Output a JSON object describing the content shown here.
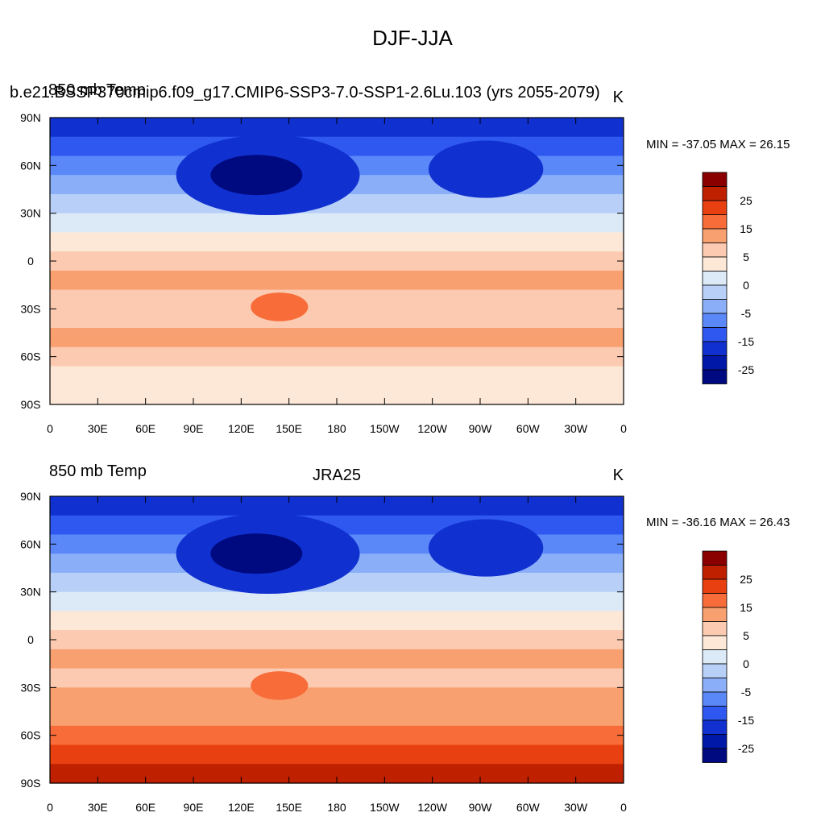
{
  "title": "DJF-JJA",
  "panels": [
    {
      "left_label": "850 mb Temp",
      "overlap_label": "b.e21.BSSP370cmip6.f09_g17.CMIP6-SSP3-7.0-SSP1-2.6Lu.103 (yrs 2055-2079)",
      "center_label": "",
      "units": "K",
      "stats": "MIN = -37.05 MAX =  26.15",
      "min": -37.05,
      "max": 26.15,
      "masked_high_terrain": true
    },
    {
      "left_label": "850 mb Temp",
      "overlap_label": "",
      "center_label": "JRA25",
      "units": "K",
      "stats": "MIN = -36.16 MAX =  26.43",
      "min": -36.16,
      "max": 26.43,
      "masked_high_terrain": false
    }
  ],
  "lat_labels": [
    "90N",
    "60N",
    "30N",
    "0",
    "30S",
    "60S",
    "90S"
  ],
  "lon_labels": [
    "0",
    "30E",
    "60E",
    "90E",
    "120E",
    "150E",
    "180",
    "150W",
    "120W",
    "90W",
    "60W",
    "30W",
    "0"
  ],
  "colorbar": {
    "labels": [
      "25",
      "15",
      "5",
      "0",
      "-5",
      "-15",
      "-25"
    ],
    "colors": [
      "#8a0000",
      "#bf2000",
      "#e84010",
      "#f86c3a",
      "#f8a070",
      "#fccab0",
      "#fde8d8",
      "#dceaf8",
      "#b8d0f8",
      "#8aaff8",
      "#5a88f8",
      "#2e58f0",
      "#1030d0",
      "#0018a8",
      "#000a80"
    ]
  }
}
